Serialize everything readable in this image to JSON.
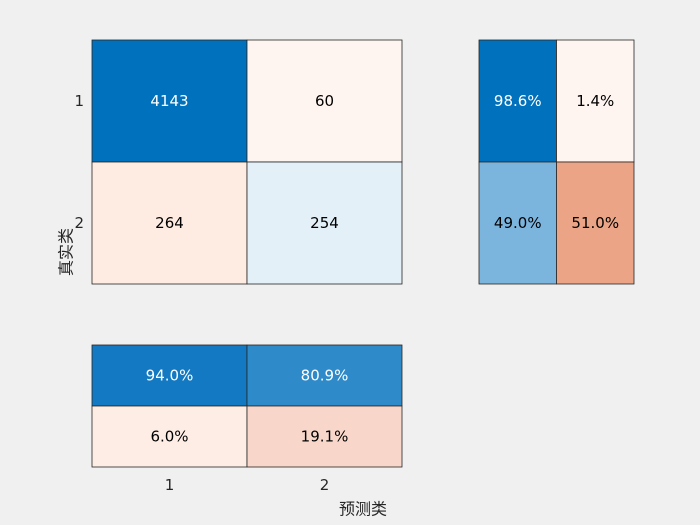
{
  "chart_data": {
    "type": "heatmap",
    "title": "",
    "xlabel": "预测类",
    "ylabel": "真实类",
    "classes": [
      "1",
      "2"
    ],
    "counts": [
      [
        4143,
        60
      ],
      [
        264,
        254
      ]
    ],
    "count_labels": [
      [
        "4143",
        "60"
      ],
      [
        "264",
        "254"
      ]
    ],
    "count_colors": [
      [
        "#0072bd",
        "#fff5f0"
      ],
      [
        "#feebe2",
        "#e3f0f8"
      ]
    ],
    "count_text_colors": [
      [
        "#ffffff",
        "#000000"
      ],
      [
        "#000000",
        "#000000"
      ]
    ],
    "row_summary": {
      "values": [
        [
          98.6,
          1.4
        ],
        [
          49.0,
          51.0
        ]
      ],
      "labels": [
        [
          "98.6%",
          "1.4%"
        ],
        [
          "49.0%",
          "51.0%"
        ]
      ],
      "colors": [
        [
          "#0072bd",
          "#fff5f0"
        ],
        [
          "#7bb5de",
          "#eba485"
        ]
      ],
      "text_colors": [
        [
          "#ffffff",
          "#000000"
        ],
        [
          "#000000",
          "#000000"
        ]
      ]
    },
    "column_summary": {
      "values": [
        [
          94.0,
          80.9
        ],
        [
          6.0,
          19.1
        ]
      ],
      "labels": [
        [
          "94.0%",
          "80.9%"
        ],
        [
          "6.0%",
          "19.1%"
        ]
      ],
      "colors": [
        [
          "#1279c2",
          "#2e8ac8"
        ],
        [
          "#feede5",
          "#f8d7ca"
        ]
      ],
      "text_colors": [
        [
          "#ffffff",
          "#ffffff"
        ],
        [
          "#000000",
          "#000000"
        ]
      ]
    },
    "grid": true,
    "legend": "none"
  }
}
